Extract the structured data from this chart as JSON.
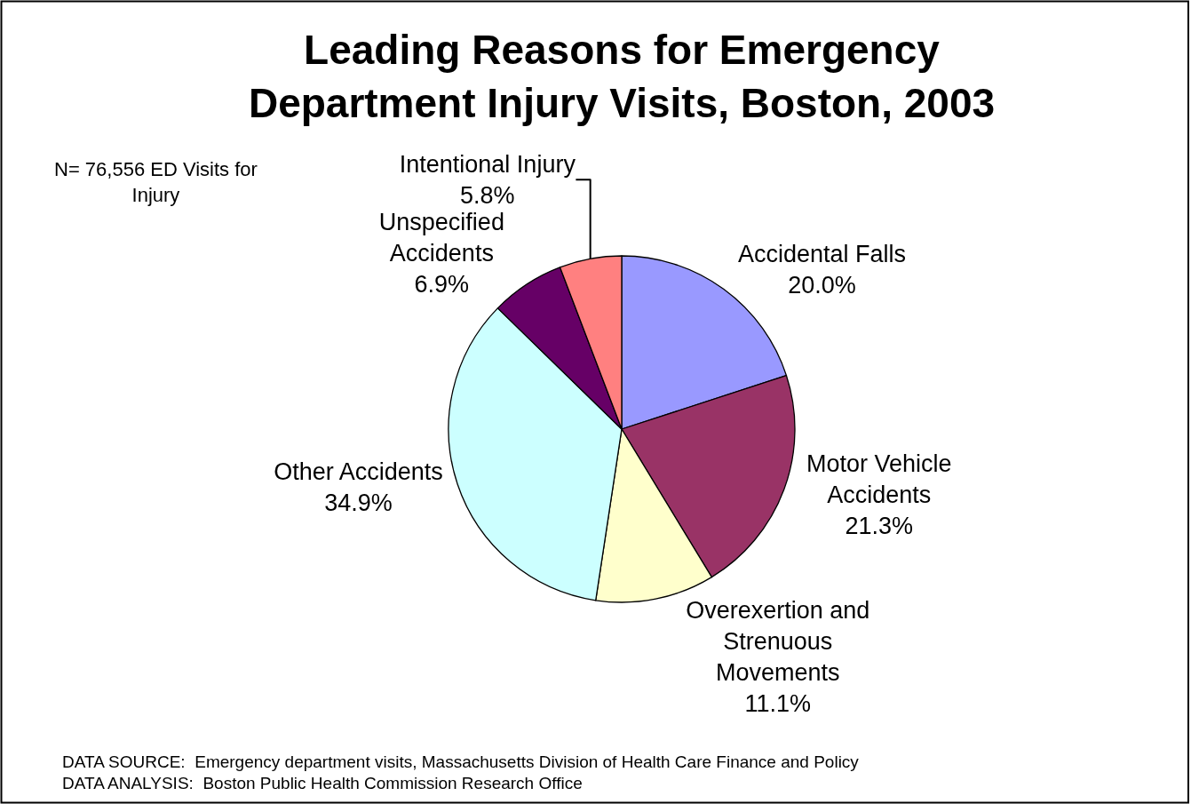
{
  "chart_data": {
    "type": "pie",
    "title": "Leading Reasons for Emergency Department Injury Visits, Boston, 2003",
    "categories": [
      "Accidental Falls",
      "Motor Vehicle Accidents",
      "Overexertion and Strenuous Movements",
      "Other Accidents",
      "Unspecified Accidents",
      "Intentional Injury"
    ],
    "values": [
      20.0,
      21.3,
      11.1,
      34.9,
      6.9,
      5.8
    ],
    "value_labels": [
      "20.0%",
      "21.3%",
      "11.1%",
      "34.9%",
      "6.9%",
      "5.8%"
    ],
    "colors": [
      "#9999ff",
      "#993366",
      "#ffffcc",
      "#ccffff",
      "#660066",
      "#ff8080"
    ],
    "annotations": [
      "N= 76,556 ED Visits for Injury",
      "DATA SOURCE:  Emergency department visits, Massachusetts Division of Health Care Finance and Policy",
      "DATA ANALYSIS:  Boston Public Health Commission Research Office"
    ]
  }
}
